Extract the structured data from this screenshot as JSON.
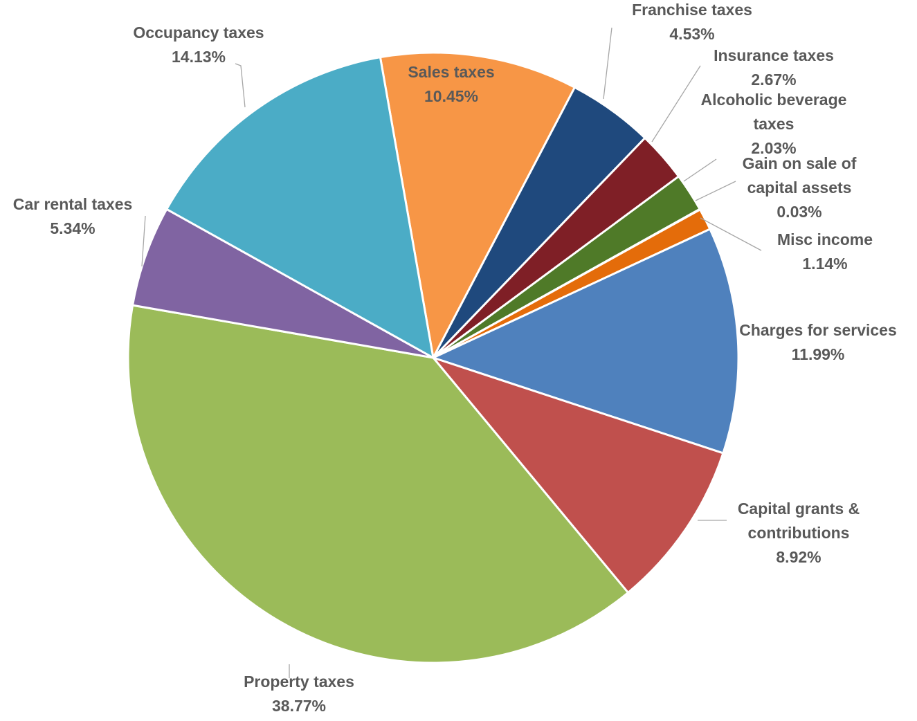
{
  "chart_data": {
    "type": "pie",
    "start_angle_deg": -10,
    "direction": "clockwise",
    "slice_border_color": "#ffffff",
    "label_color": "#595959",
    "slices": [
      {
        "name": "Sales taxes",
        "value": 10.45,
        "label": "10.45%",
        "color": "#F79646"
      },
      {
        "name": "Franchise taxes",
        "value": 4.53,
        "label": "4.53%",
        "color": "#1F497D"
      },
      {
        "name": "Insurance taxes",
        "value": 2.67,
        "label": "2.67%",
        "color": "#7F1F26"
      },
      {
        "name": "Alcoholic beverage taxes",
        "value": 2.03,
        "label": "2.03%",
        "color": "#4F7A28"
      },
      {
        "name": "Gain on sale of capital assets",
        "value": 0.03,
        "label": "0.03%",
        "color": "#3B5F8A"
      },
      {
        "name": "Misc income",
        "value": 1.14,
        "label": "1.14%",
        "color": "#E46C0A"
      },
      {
        "name": "Charges for services",
        "value": 11.99,
        "label": "11.99%",
        "color": "#4F81BD"
      },
      {
        "name": "Capital grants & contributions",
        "value": 8.92,
        "label": "8.92%",
        "color": "#C0504D"
      },
      {
        "name": "Property taxes",
        "value": 38.77,
        "label": "38.77%",
        "color": "#9BBB59"
      },
      {
        "name": "Car rental taxes",
        "value": 5.34,
        "label": "5.34%",
        "color": "#8064A2"
      },
      {
        "name": "Occupancy taxes",
        "value": 14.13,
        "label": "14.13%",
        "color": "#4BACC6"
      }
    ]
  }
}
